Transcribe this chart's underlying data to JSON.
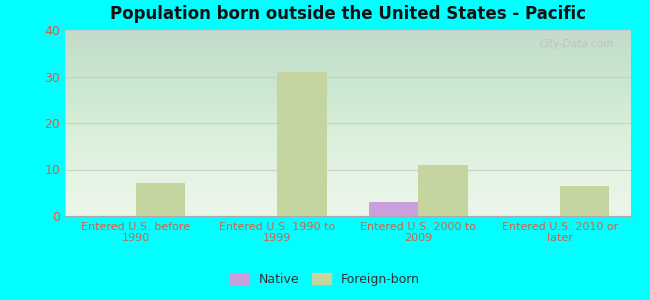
{
  "title": "Population born outside the United States - Pacific",
  "categories": [
    "Entered U.S. before\n1990",
    "Entered U.S. 1990 to\n1999",
    "Entered U.S. 2000 to\n2009",
    "Entered U.S. 2010 or\nlater"
  ],
  "native_values": [
    0,
    0,
    3,
    0
  ],
  "foreign_born_values": [
    7,
    31,
    11,
    6.5
  ],
  "native_color": "#c9a0dc",
  "foreign_born_color": "#c5d5a0",
  "background_color": "#00ffff",
  "plot_bg_color": "#e8f5e8",
  "title_color": "#111111",
  "axis_label_color": "#cc6644",
  "tick_color": "#cc6644",
  "ylim": [
    0,
    40
  ],
  "yticks": [
    0,
    10,
    20,
    30,
    40
  ],
  "bar_width": 0.35,
  "watermark": "City-Data.com",
  "legend_native": "Native",
  "legend_foreign": "Foreign-born"
}
